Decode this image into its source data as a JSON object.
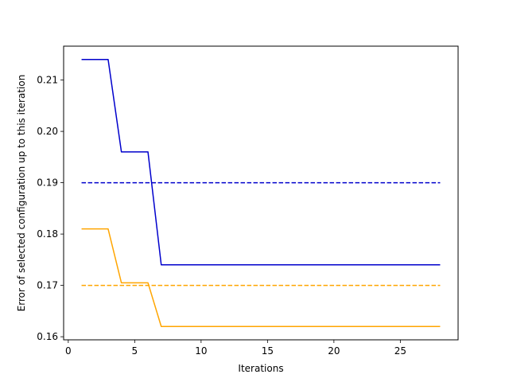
{
  "chart_data": {
    "type": "line",
    "xlabel": "Iterations",
    "ylabel": "Error of selected configuration up to this iteration",
    "xlim": [
      -0.35,
      29.35
    ],
    "ylim": [
      0.1594,
      0.2166
    ],
    "xticks": [
      0,
      5,
      10,
      15,
      20,
      25
    ],
    "xtick_labels": [
      "0",
      "5",
      "10",
      "15",
      "20",
      "25"
    ],
    "yticks": [
      0.16,
      0.17,
      0.18,
      0.19,
      0.2,
      0.21
    ],
    "ytick_labels": [
      "0.16",
      "0.17",
      "0.18",
      "0.19",
      "0.20",
      "0.21"
    ],
    "grid": false,
    "series": [
      {
        "color": "#0000cc",
        "style": "solid",
        "x": [
          1,
          2,
          3,
          4,
          5,
          6,
          7,
          8,
          9,
          10,
          11,
          12,
          13,
          14,
          15,
          16,
          17,
          18,
          19,
          20,
          21,
          22,
          23,
          24,
          25,
          26,
          27,
          28
        ],
        "y": [
          0.214,
          0.214,
          0.214,
          0.196,
          0.196,
          0.196,
          0.174,
          0.174,
          0.174,
          0.174,
          0.174,
          0.174,
          0.174,
          0.174,
          0.174,
          0.174,
          0.174,
          0.174,
          0.174,
          0.174,
          0.174,
          0.174,
          0.174,
          0.174,
          0.174,
          0.174,
          0.174,
          0.174
        ]
      },
      {
        "color": "#0000cc",
        "style": "dashed",
        "x": [
          1,
          28
        ],
        "y": [
          0.19,
          0.19
        ]
      },
      {
        "color": "#ffa500",
        "style": "solid",
        "x": [
          1,
          2,
          3,
          4,
          5,
          6,
          7,
          8,
          9,
          10,
          11,
          12,
          13,
          14,
          15,
          16,
          17,
          18,
          19,
          20,
          21,
          22,
          23,
          24,
          25,
          26,
          27,
          28
        ],
        "y": [
          0.181,
          0.181,
          0.181,
          0.1705,
          0.1705,
          0.1705,
          0.162,
          0.162,
          0.162,
          0.162,
          0.162,
          0.162,
          0.162,
          0.162,
          0.162,
          0.162,
          0.162,
          0.162,
          0.162,
          0.162,
          0.162,
          0.162,
          0.162,
          0.162,
          0.162,
          0.162,
          0.162,
          0.162
        ]
      },
      {
        "color": "#ffa500",
        "style": "dashed",
        "x": [
          1,
          28
        ],
        "y": [
          0.17,
          0.17
        ]
      }
    ]
  }
}
